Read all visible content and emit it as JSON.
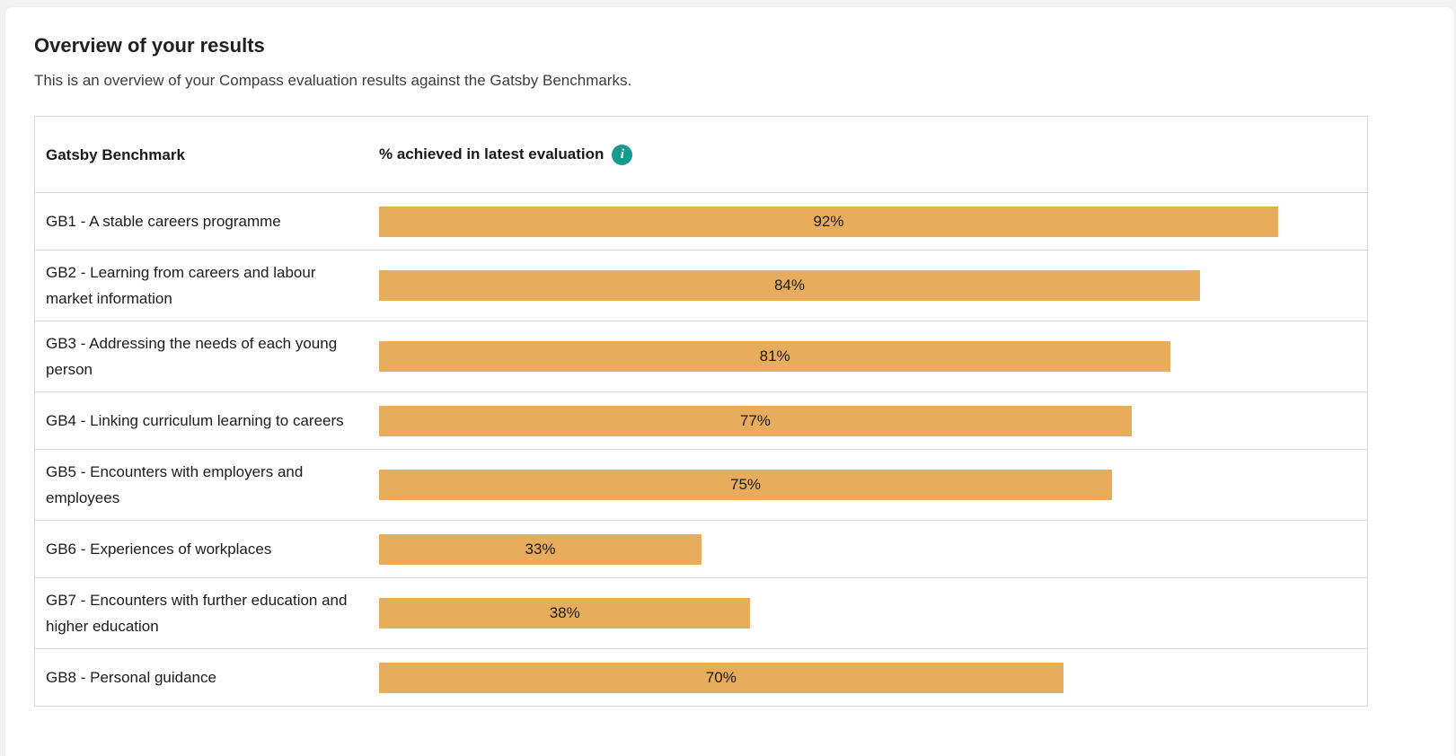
{
  "page": {
    "title": "Overview of your results",
    "subtitle": "This is an overview of your Compass evaluation results against the Gatsby Benchmarks."
  },
  "table": {
    "columns": [
      {
        "label": "Gatsby Benchmark"
      },
      {
        "label": "% achieved in latest evaluation",
        "info_icon_glyph": "i"
      }
    ],
    "rows": [
      {
        "label": "GB1 - A stable careers programme",
        "value": 92,
        "value_label": "92%"
      },
      {
        "label": "GB2 - Learning from careers and labour market information",
        "value": 84,
        "value_label": "84%"
      },
      {
        "label": "GB3 - Addressing the needs of each young person",
        "value": 81,
        "value_label": "81%"
      },
      {
        "label": "GB4 - Linking curriculum learning to careers",
        "value": 77,
        "value_label": "77%"
      },
      {
        "label": "GB5 - Encounters with employers and employees",
        "value": 75,
        "value_label": "75%"
      },
      {
        "label": "GB6 - Experiences of workplaces",
        "value": 33,
        "value_label": "33%"
      },
      {
        "label": "GB7 - Encounters with further education and higher education",
        "value": 38,
        "value_label": "38%"
      },
      {
        "label": "GB8 - Personal guidance",
        "value": 70,
        "value_label": "70%"
      }
    ]
  },
  "chart_data": {
    "type": "bar",
    "orientation": "horizontal",
    "title": "% achieved in latest evaluation",
    "categories": [
      "GB1 - A stable careers programme",
      "GB2 - Learning from careers and labour market information",
      "GB3 - Addressing the needs of each young person",
      "GB4 - Linking curriculum learning to careers",
      "GB5 - Encounters with employers and employees",
      "GB6 - Experiences of workplaces",
      "GB7 - Encounters with further education and higher education",
      "GB8 - Personal guidance"
    ],
    "values": [
      92,
      84,
      81,
      77,
      75,
      33,
      38,
      70
    ],
    "value_labels": [
      "92%",
      "84%",
      "81%",
      "77%",
      "75%",
      "33%",
      "38%",
      "70%"
    ],
    "xlim": [
      0,
      100
    ],
    "grid": false,
    "legend": false,
    "bar_color": "#e8ad5c",
    "value_label_position": "center-inside"
  },
  "colors": {
    "bar": "#e8ad5c",
    "info_icon": "#169b90",
    "page_background": "#f2f2f3",
    "card_background": "#ffffff",
    "table_border": "#d8d8d8",
    "title_text": "#212121",
    "body_text": "#3d3d3d"
  }
}
